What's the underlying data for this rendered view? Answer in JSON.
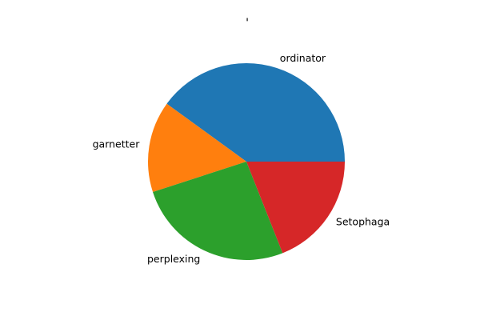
{
  "chart_data": {
    "type": "pie",
    "title": "'",
    "slices": [
      {
        "label": "ordinator",
        "value": 40,
        "color": "#1f77b4"
      },
      {
        "label": "garnetter",
        "value": 15,
        "color": "#ff7f0e"
      },
      {
        "label": "perplexing",
        "value": 26,
        "color": "#2ca02c"
      },
      {
        "label": "Setophaga",
        "value": 19,
        "color": "#d62728"
      }
    ],
    "start_angle_deg": 0,
    "direction": "counterclockwise"
  }
}
